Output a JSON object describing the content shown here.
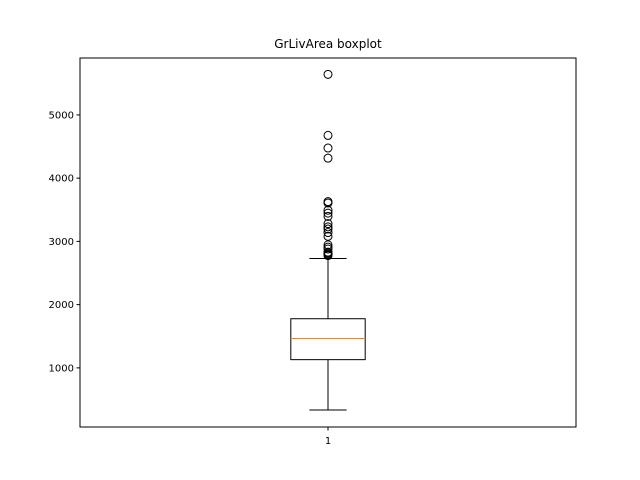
{
  "chart_data": {
    "type": "boxplot",
    "title": "GrLivArea boxplot",
    "xlabel": "",
    "ylabel": "",
    "categories": [
      "1"
    ],
    "ylim": [
      65,
      5900
    ],
    "xlim": [
      0.5,
      1.5
    ],
    "yticks": [
      1000,
      2000,
      3000,
      4000,
      5000
    ],
    "yticklabels": [
      "1000",
      "2000",
      "3000",
      "4000",
      "5000"
    ],
    "grid": false,
    "boxes": [
      {
        "category": "1",
        "whisker_low": 334,
        "q1": 1130,
        "median": 1464,
        "q3": 1777,
        "whisker_high": 2730,
        "outliers": [
          2775,
          2790,
          2805,
          2822,
          2830,
          2880,
          2910,
          2945,
          3080,
          3140,
          3195,
          3230,
          3280,
          3395,
          3447,
          3493,
          3608,
          3628,
          4316,
          4476,
          4676,
          5642
        ]
      }
    ],
    "colors": {
      "box": "#000000",
      "median": "#ff7f0e",
      "outlier": "#000000",
      "axes": "#000000"
    }
  }
}
